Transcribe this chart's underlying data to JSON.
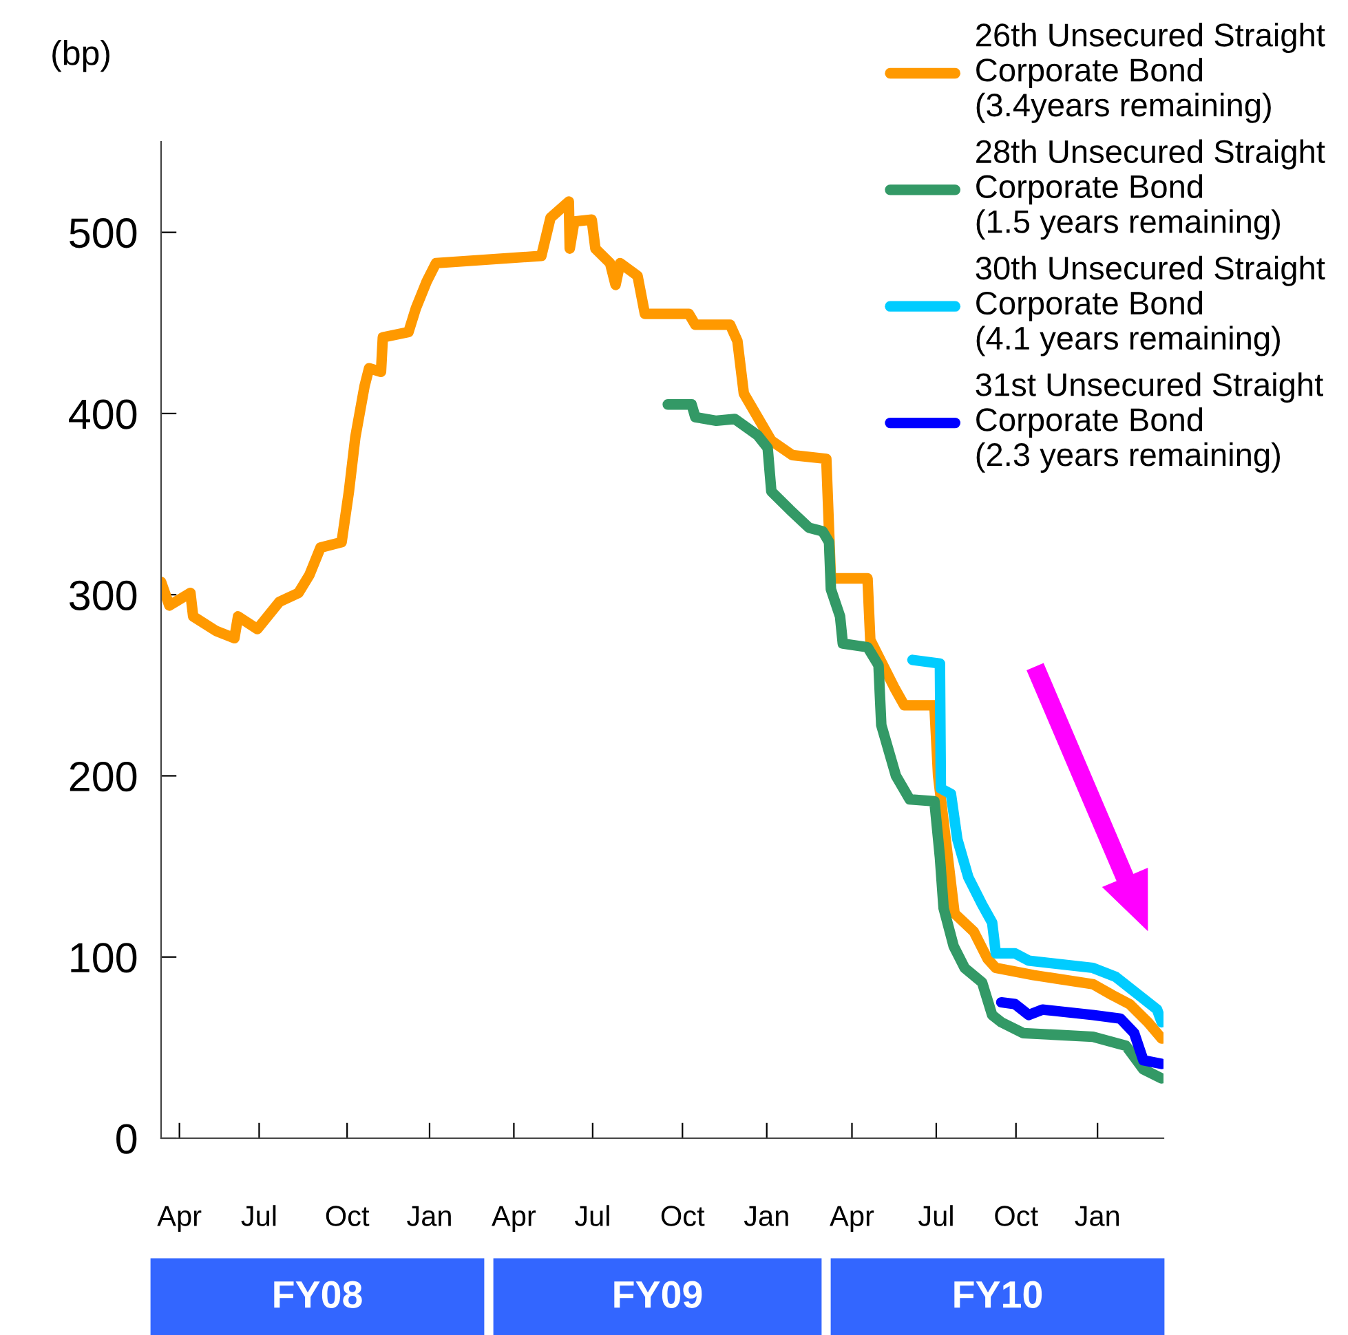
{
  "chart_data": {
    "type": "line",
    "ylabel": "(bp)",
    "xlim": [
      "2008-04-01",
      "2011-03-31"
    ],
    "ylim": [
      0,
      550
    ],
    "yticks": [
      0,
      100,
      200,
      300,
      400,
      500
    ],
    "xticks": [
      {
        "value": "2008-04-21",
        "label": "Apr"
      },
      {
        "value": "2008-07-17",
        "label": "Jul"
      },
      {
        "value": "2008-10-21",
        "label": "Oct"
      },
      {
        "value": "2009-01-19",
        "label": "Jan"
      },
      {
        "value": "2009-04-21",
        "label": "Apr"
      },
      {
        "value": "2009-07-16",
        "label": "Jul"
      },
      {
        "value": "2009-10-22",
        "label": "Oct"
      },
      {
        "value": "2010-01-22",
        "label": "Jan"
      },
      {
        "value": "2010-04-25",
        "label": "Apr"
      },
      {
        "value": "2010-07-26",
        "label": "Jul"
      },
      {
        "value": "2010-10-21",
        "label": "Oct"
      },
      {
        "value": "2011-01-18",
        "label": "Jan"
      }
    ],
    "annotations": [
      "FY08",
      "FY09",
      "FY10"
    ],
    "grid": false,
    "legend": "top right",
    "marker": "none",
    "line_style": "solid",
    "series": [
      {
        "name": "26th Unsecured Straight\nCorporate Bond\n(3.4years remaining)",
        "color": "#ff9900",
        "x": [
          "2008-04-01",
          "2008-04-10",
          "2008-05-03",
          "2008-05-06",
          "2008-05-31",
          "2008-06-20",
          "2008-06-24",
          "2008-07-15",
          "2008-08-08",
          "2008-08-29",
          "2008-09-10",
          "2008-09-22",
          "2008-10-15",
          "2008-10-23",
          "2008-10-30",
          "2008-11-09",
          "2008-11-14",
          "2008-11-27",
          "2008-11-29",
          "2008-12-27",
          "2009-01-04",
          "2009-01-16",
          "2009-01-26",
          "2009-05-21",
          "2009-05-31",
          "2009-06-20",
          "2009-06-21",
          "2009-06-26",
          "2009-07-15",
          "2009-07-19",
          "2009-08-04",
          "2009-08-10",
          "2009-08-15",
          "2009-09-03",
          "2009-09-11",
          "2009-10-09",
          "2009-10-29",
          "2009-11-05",
          "2009-12-13",
          "2009-12-21",
          "2009-12-28",
          "2010-01-27",
          "2010-02-19",
          "2010-03-28",
          "2010-04-02",
          "2010-05-12",
          "2010-05-15",
          "2010-06-11",
          "2010-06-21",
          "2010-07-24",
          "2010-07-28",
          "2010-08-06",
          "2010-08-15",
          "2010-09-05",
          "2010-09-20",
          "2010-09-29",
          "2010-11-09",
          "2011-01-13",
          "2011-02-03",
          "2011-02-22",
          "2011-03-14",
          "2011-03-29"
        ],
        "values": [
          307,
          294,
          301,
          288,
          280,
          276,
          288,
          281,
          296,
          301,
          311,
          326,
          329,
          357,
          387,
          415,
          425,
          423,
          442,
          445,
          458,
          473,
          483,
          487,
          508,
          517,
          491,
          506,
          507,
          491,
          483,
          471,
          483,
          476,
          455,
          455,
          455,
          449,
          449,
          440,
          411,
          385,
          377,
          375,
          309,
          309,
          275,
          248,
          239,
          239,
          200,
          162,
          124,
          114,
          99,
          94,
          90,
          85,
          79,
          74,
          64,
          55
        ]
      },
      {
        "name": "28th Unsecured Straight\nCorporate Bond\n(1.5 years remaining)",
        "color": "#339966",
        "x": [
          "2009-10-06",
          "2009-11-01",
          "2009-11-05",
          "2009-11-28",
          "2009-12-18",
          "2010-01-12",
          "2010-01-23",
          "2010-01-27",
          "2010-02-16",
          "2010-03-09",
          "2010-03-24",
          "2010-03-31",
          "2010-04-02",
          "2010-04-12",
          "2010-04-15",
          "2010-05-12",
          "2010-05-24",
          "2010-05-27",
          "2010-06-12",
          "2010-06-27",
          "2010-07-24",
          "2010-07-30",
          "2010-08-03",
          "2010-08-14",
          "2010-08-26",
          "2010-09-14",
          "2010-09-25",
          "2010-10-05",
          "2010-10-29",
          "2011-01-13",
          "2011-02-18",
          "2011-03-09",
          "2011-03-29"
        ],
        "values": [
          405,
          405,
          398,
          396,
          397,
          388,
          381,
          357,
          347,
          337,
          335,
          329,
          303,
          288,
          273,
          271,
          261,
          228,
          200,
          187,
          186,
          155,
          127,
          106,
          94,
          86,
          68,
          64,
          58,
          56,
          51,
          38,
          33
        ]
      },
      {
        "name": "30th Unsecured Straight\nCorporate Bond\n(4.1 years remaining)",
        "color": "#00ccff",
        "x": [
          "2010-06-30",
          "2010-07-30",
          "2010-07-31",
          "2010-08-11",
          "2010-08-18",
          "2010-08-30",
          "2010-09-14",
          "2010-09-25",
          "2010-09-29",
          "2010-10-20",
          "2010-11-04",
          "2011-01-13",
          "2011-02-07",
          "2011-02-27",
          "2011-03-24",
          "2011-03-29"
        ],
        "values": [
          264,
          262,
          193,
          190,
          165,
          144,
          129,
          119,
          102,
          102,
          98,
          94,
          89,
          81,
          71,
          64
        ]
      },
      {
        "name": "31st Unsecured Straight\nCorporate Bond\n(2.3 years remaining)",
        "color": "#0000ff",
        "x": [
          "2010-10-05",
          "2010-10-20",
          "2010-11-04",
          "2010-11-19",
          "2011-01-13",
          "2011-02-12",
          "2011-02-27",
          "2011-03-09",
          "2011-03-29"
        ],
        "values": [
          75,
          74,
          68,
          71,
          68,
          66,
          58,
          43,
          41
        ]
      }
    ]
  }
}
